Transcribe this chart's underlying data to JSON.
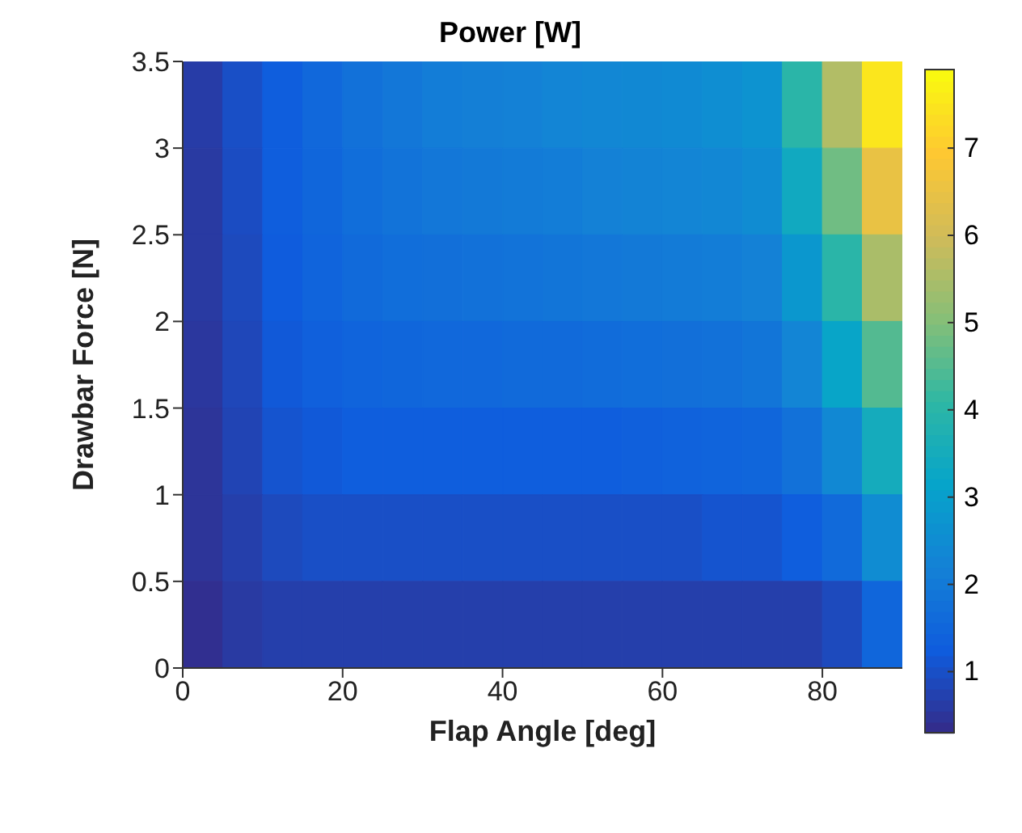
{
  "chart_data": {
    "type": "heatmap",
    "title": "Power [W]",
    "xlabel": "Flap Angle [deg]",
    "ylabel": "Drawbar Force [N]",
    "xlim": [
      0,
      90
    ],
    "xticks": [
      0,
      20,
      40,
      60,
      80
    ],
    "ylim": [
      0,
      3.5
    ],
    "yticks": [
      0,
      0.5,
      1,
      1.5,
      2,
      2.5,
      3,
      3.5
    ],
    "clim": [
      0.3,
      7.9
    ],
    "cticks": [
      1,
      2,
      3,
      4,
      5,
      6,
      7
    ],
    "cells": [
      [
        0.65,
        1.0,
        1.3,
        1.55,
        1.8,
        1.95,
        2.1,
        2.15,
        2.2,
        2.3,
        2.35,
        2.4,
        2.45,
        2.55,
        2.7,
        4.0,
        5.6,
        7.5
      ],
      [
        0.6,
        0.95,
        1.3,
        1.5,
        1.7,
        1.85,
        1.95,
        2.0,
        2.05,
        2.1,
        2.2,
        2.25,
        2.3,
        2.35,
        2.5,
        3.4,
        4.8,
        6.5
      ],
      [
        0.6,
        0.9,
        1.25,
        1.45,
        1.6,
        1.7,
        1.75,
        1.8,
        1.85,
        1.9,
        1.95,
        2.0,
        2.05,
        2.1,
        2.2,
        2.8,
        4.0,
        5.5
      ],
      [
        0.55,
        0.85,
        1.2,
        1.35,
        1.45,
        1.5,
        1.55,
        1.55,
        1.6,
        1.6,
        1.65,
        1.7,
        1.75,
        1.8,
        1.9,
        2.3,
        3.2,
        4.5
      ],
      [
        0.5,
        0.8,
        1.1,
        1.2,
        1.3,
        1.3,
        1.3,
        1.3,
        1.3,
        1.3,
        1.3,
        1.35,
        1.4,
        1.45,
        1.5,
        1.8,
        2.4,
        3.5
      ],
      [
        0.5,
        0.7,
        0.9,
        1.0,
        1.0,
        1.0,
        1.0,
        1.0,
        1.0,
        1.0,
        1.0,
        1.0,
        1.0,
        1.1,
        1.1,
        1.3,
        1.6,
        2.5
      ],
      [
        0.4,
        0.6,
        0.7,
        0.7,
        0.7,
        0.7,
        0.7,
        0.7,
        0.7,
        0.7,
        0.7,
        0.7,
        0.7,
        0.7,
        0.7,
        0.7,
        0.9,
        1.5
      ]
    ]
  }
}
